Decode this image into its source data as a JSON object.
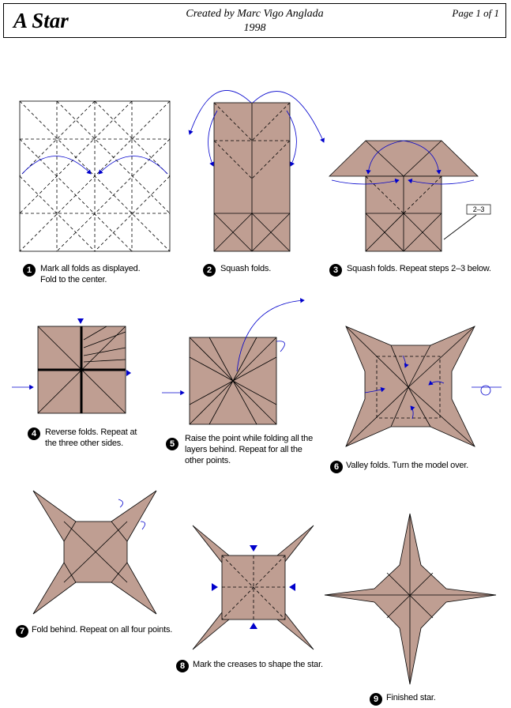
{
  "header": {
    "title": "A Star",
    "credit_line1": "Created by Marc Vigo Anglada",
    "credit_line2": "1998",
    "page": "Page 1 of  1"
  },
  "colors": {
    "paper": "#bf9e92",
    "arrow": "#0000cc",
    "line": "#000000"
  },
  "repeat_label": "2–3",
  "steps": [
    {
      "num": "1",
      "line1": "Mark all folds as displayed.",
      "line2": "Fold to the center."
    },
    {
      "num": "2",
      "line1": "Squash folds.",
      "line2": ""
    },
    {
      "num": "3",
      "line1": "Squash folds. Repeat steps 2–3 below.",
      "line2": ""
    },
    {
      "num": "4",
      "line1": "Reverse folds. Repeat at",
      "line2": "the three other sides."
    },
    {
      "num": "5",
      "line1": "Raise the point while folding all the",
      "line2": "layers behind. Repeat for all the",
      "line3": "other points."
    },
    {
      "num": "6",
      "line1": "Valley folds. Turn the model over.",
      "line2": ""
    },
    {
      "num": "7",
      "line1": "Fold behind. Repeat on all four points.",
      "line2": ""
    },
    {
      "num": "8",
      "line1": "Mark the creases to shape the star.",
      "line2": ""
    },
    {
      "num": "9",
      "line1": "Finished star.",
      "line2": ""
    }
  ]
}
